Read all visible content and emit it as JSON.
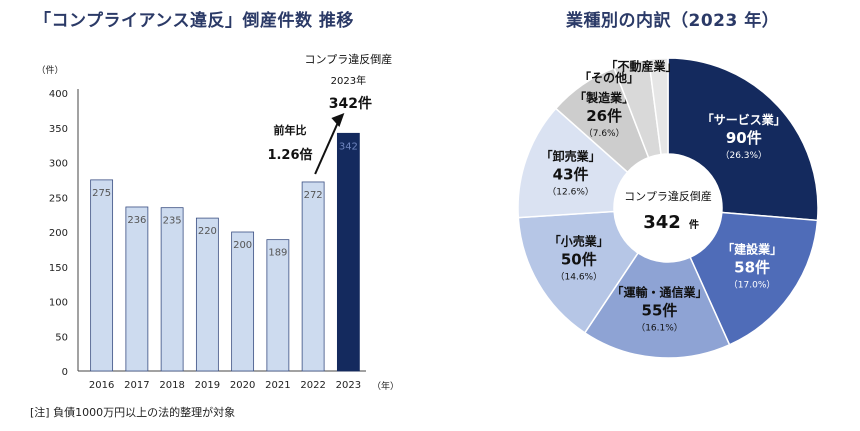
{
  "bar_title": "「コンプライアンス違反」倒産件数 推移",
  "pie_title": "業種別の内訳（2023 年）",
  "note": "[注] 負債1000万円以上の法的整理が対象",
  "colors": {
    "bar_light": "#cddbef",
    "bar_light_stroke": "#3b4f82",
    "bar_dark": "#142a5e",
    "axis": "#444444",
    "title": "#2b3a67"
  },
  "chart_data": [
    {
      "type": "bar",
      "title": "「コンプライアンス違反」倒産件数 推移",
      "ylabel": "（件）",
      "xlabel": "（年）",
      "ylim": [
        0,
        400
      ],
      "yticks": [
        "0",
        "50",
        "100",
        "150",
        "200",
        "250",
        "300",
        "350",
        "400"
      ],
      "categories": [
        "2016",
        "2017",
        "2018",
        "2019",
        "2020",
        "2021",
        "2022",
        "2023"
      ],
      "values": [
        275,
        236,
        235,
        220,
        200,
        189,
        272,
        342
      ],
      "value_labels": [
        "275",
        "236",
        "235",
        "220",
        "200",
        "189",
        "272",
        "342"
      ],
      "highlight_index": 7,
      "annotation": {
        "line1": "コンプラ違反倒産",
        "line2": "2023年",
        "line3": "342件",
        "ratio_label": "前年比",
        "ratio_value": "1.26倍"
      }
    },
    {
      "type": "pie",
      "title": "業種別の内訳（2023 年）",
      "total": 342,
      "center_label": "コンプラ違反倒産",
      "center_value": "342",
      "center_unit": "件",
      "slices": [
        {
          "name": "「サービス業」",
          "value": 90,
          "count_label": "90件",
          "pct_label": "（26.3%）",
          "color": "#142a5e",
          "text_color": "#ffffff"
        },
        {
          "name": "「建設業」",
          "value": 58,
          "count_label": "58件",
          "pct_label": "（17.0%）",
          "color": "#4f6cb8",
          "text_color": "#ffffff"
        },
        {
          "name": "「運輸・通信業」",
          "value": 55,
          "count_label": "55件",
          "pct_label": "（16.1%）",
          "color": "#8ea3d4",
          "text_color": "#111111"
        },
        {
          "name": "「小売業」",
          "value": 50,
          "count_label": "50件",
          "pct_label": "（14.6%）",
          "color": "#b6c6e6",
          "text_color": "#111111"
        },
        {
          "name": "「卸売業」",
          "value": 43,
          "count_label": "43件",
          "pct_label": "（12.6%）",
          "color": "#dae2f2",
          "text_color": "#111111"
        },
        {
          "name": "「製造業」",
          "value": 26,
          "count_label": "26件",
          "pct_label": "（7.6%）",
          "color": "#cdcdcd",
          "text_color": "#111111"
        },
        {
          "name": "「その他」",
          "value": 13,
          "count_label": "",
          "pct_label": "",
          "color": "#d9d9d9",
          "text_color": "#111111"
        },
        {
          "name": "「不動産業」",
          "value": 7,
          "count_label": "",
          "pct_label": "",
          "color": "#e6e6e6",
          "text_color": "#111111"
        }
      ]
    }
  ]
}
